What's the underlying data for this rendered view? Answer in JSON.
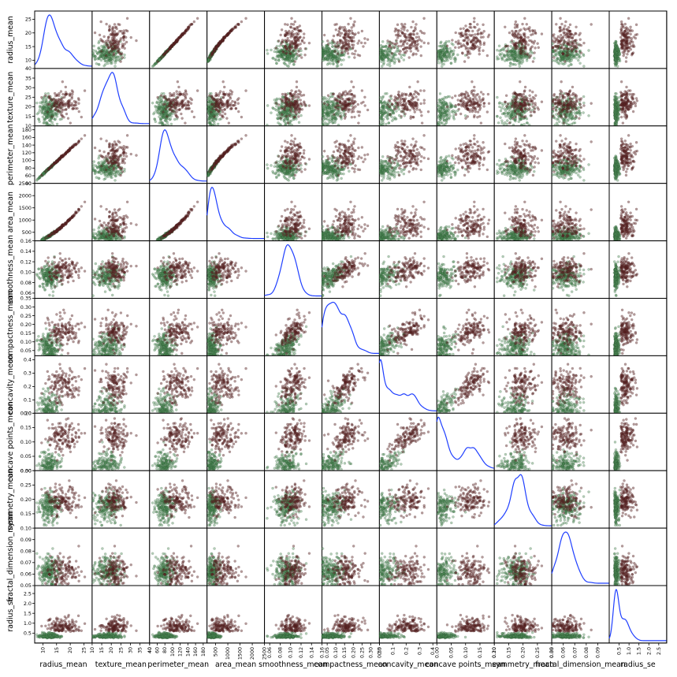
{
  "chart_data": {
    "type": "scatter",
    "matrix": true,
    "diagonal": "kde",
    "variables": [
      "radius_mean",
      "texture_mean",
      "perimeter_mean",
      "area_mean",
      "smoothness_mean",
      "compactness_mean",
      "concavity_mean",
      "concave points_mean",
      "symmetry_mean",
      "fractal_dimension_mean",
      "radius_se"
    ],
    "groups": [
      {
        "color": "#4f9a5a",
        "description": "lower-value cluster"
      },
      {
        "color": "#7d2b2b",
        "description": "higher-value cluster"
      }
    ],
    "colors": {
      "kde": "#1f3fff",
      "axis": "#000000",
      "dark_point": "#5b2323",
      "green_point": "#4c8a56"
    },
    "axes": {
      "radius_mean": {
        "ticks": [
          10,
          15,
          20,
          25
        ],
        "range": [
          7,
          28
        ]
      },
      "texture_mean": {
        "ticks": [
          10,
          15,
          20,
          25,
          30,
          35,
          40
        ],
        "range": [
          10,
          40
        ]
      },
      "perimeter_mean": {
        "ticks": [
          40,
          60,
          80,
          100,
          120,
          140,
          160,
          180
        ],
        "range": [
          40,
          190
        ]
      },
      "area_mean": {
        "ticks": [
          500,
          1000,
          1500,
          2000,
          2500
        ],
        "range": [
          150,
          2500
        ]
      },
      "smoothness_mean": {
        "ticks": [
          0.06,
          0.08,
          0.1,
          0.12,
          0.14,
          0.16
        ],
        "range": [
          0.05,
          0.16
        ]
      },
      "compactness_mean": {
        "ticks": [
          0.05,
          0.1,
          0.15,
          0.2,
          0.25,
          0.3,
          0.35
        ],
        "range": [
          0.02,
          0.35
        ]
      },
      "concavity_mean": {
        "ticks": [
          0.0,
          0.1,
          0.2,
          0.3,
          0.4
        ],
        "range": [
          0.0,
          0.43
        ]
      },
      "concave points_mean": {
        "ticks": [
          0.0,
          0.05,
          0.1,
          0.15,
          0.2
        ],
        "range": [
          0.0,
          0.2
        ]
      },
      "symmetry_mean": {
        "ticks": [
          0.1,
          0.15,
          0.2,
          0.25,
          0.3
        ],
        "range": [
          0.1,
          0.3
        ]
      },
      "fractal_dimension_mean": {
        "ticks": [
          0.05,
          0.06,
          0.07,
          0.08,
          0.09
        ],
        "range": [
          0.05,
          0.1
        ]
      },
      "radius_se": {
        "ticks": [
          0.5,
          1.0,
          1.5,
          2.0,
          2.5
        ],
        "range": [
          0.0,
          2.9
        ]
      }
    }
  }
}
